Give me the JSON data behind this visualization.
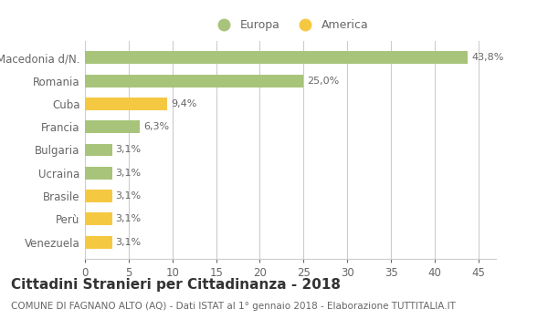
{
  "categories": [
    "Venezuela",
    "Perù",
    "Brasile",
    "Ucraina",
    "Bulgaria",
    "Francia",
    "Cuba",
    "Romania",
    "Macedonia d/N."
  ],
  "values": [
    3.1,
    3.1,
    3.1,
    3.1,
    3.1,
    6.3,
    9.4,
    25.0,
    43.8
  ],
  "labels": [
    "3,1%",
    "3,1%",
    "3,1%",
    "3,1%",
    "3,1%",
    "6,3%",
    "9,4%",
    "25,0%",
    "43,8%"
  ],
  "colors": [
    "#f5c842",
    "#f5c842",
    "#f5c842",
    "#a8c47a",
    "#a8c47a",
    "#a8c47a",
    "#f5c842",
    "#a8c47a",
    "#a8c47a"
  ],
  "legend_europa_color": "#a8c47a",
  "legend_america_color": "#f5c842",
  "title": "Cittadini Stranieri per Cittadinanza - 2018",
  "subtitle": "COMUNE DI FAGNANO ALTO (AQ) - Dati ISTAT al 1° gennaio 2018 - Elaborazione TUTTITALIA.IT",
  "xlim": [
    0,
    47
  ],
  "xticks": [
    0,
    5,
    10,
    15,
    20,
    25,
    30,
    35,
    40,
    45
  ],
  "background_color": "#ffffff",
  "grid_color": "#cccccc",
  "label_fontsize": 8,
  "ylabel_fontsize": 8.5,
  "xlabel_fontsize": 8.5,
  "title_fontsize": 11,
  "subtitle_fontsize": 7.5,
  "bar_height": 0.55
}
